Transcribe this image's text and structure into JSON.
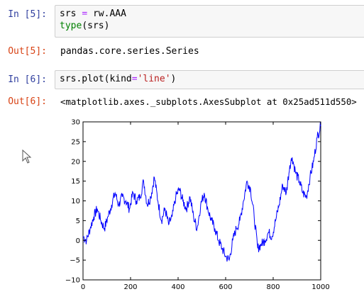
{
  "cells": [
    {
      "in_prompt": "In [5]:",
      "code_line1_a": "srs",
      "code_line1_op": "=",
      "code_line1_b": "rw.AAA",
      "code_line2_fn": "type",
      "code_line2_rest": "(srs)",
      "out_prompt": "Out[5]:",
      "output": "pandas.core.series.Series"
    },
    {
      "in_prompt": "In [6]:",
      "code_a": "srs.plot(kind",
      "code_op": "=",
      "code_str": "'line'",
      "code_b": ")",
      "out_prompt": "Out[6]:",
      "output": "<matplotlib.axes._subplots.AxesSubplot at 0x25ad511d550>"
    }
  ],
  "chart_data": {
    "type": "line",
    "xlim": [
      0,
      1000
    ],
    "ylim": [
      -10,
      30
    ],
    "xticks": [
      0,
      200,
      400,
      600,
      800,
      1000
    ],
    "yticks": [
      -10,
      -5,
      0,
      5,
      10,
      15,
      20,
      25,
      30
    ],
    "line_color": "#0000ff",
    "x": [
      0,
      15,
      30,
      45,
      60,
      75,
      90,
      105,
      120,
      135,
      150,
      165,
      180,
      195,
      210,
      225,
      240,
      255,
      270,
      285,
      300,
      315,
      330,
      345,
      360,
      375,
      390,
      405,
      420,
      435,
      450,
      465,
      480,
      495,
      510,
      525,
      540,
      555,
      570,
      585,
      600,
      615,
      630,
      645,
      660,
      675,
      690,
      705,
      720,
      735,
      750,
      765,
      780,
      795,
      810,
      825,
      840,
      855,
      870,
      880,
      895,
      910,
      925,
      940,
      955,
      970,
      985,
      1000
    ],
    "values": [
      1,
      0,
      3,
      6,
      8,
      5,
      3,
      6,
      9,
      12,
      9,
      11,
      10,
      8,
      12,
      10,
      11,
      15,
      9,
      11,
      16,
      10,
      5,
      8,
      4,
      6,
      11,
      13,
      10,
      8,
      11,
      6,
      3,
      9,
      12,
      8,
      5,
      3,
      0,
      -2,
      -4,
      -5,
      0,
      3,
      5,
      10,
      15,
      13,
      6,
      -2,
      -1,
      0,
      2,
      1,
      5,
      9,
      14,
      12,
      19,
      21,
      17,
      15,
      12,
      11,
      16,
      20,
      26,
      29
    ]
  },
  "cursor_icon": "mouse-pointer-icon"
}
